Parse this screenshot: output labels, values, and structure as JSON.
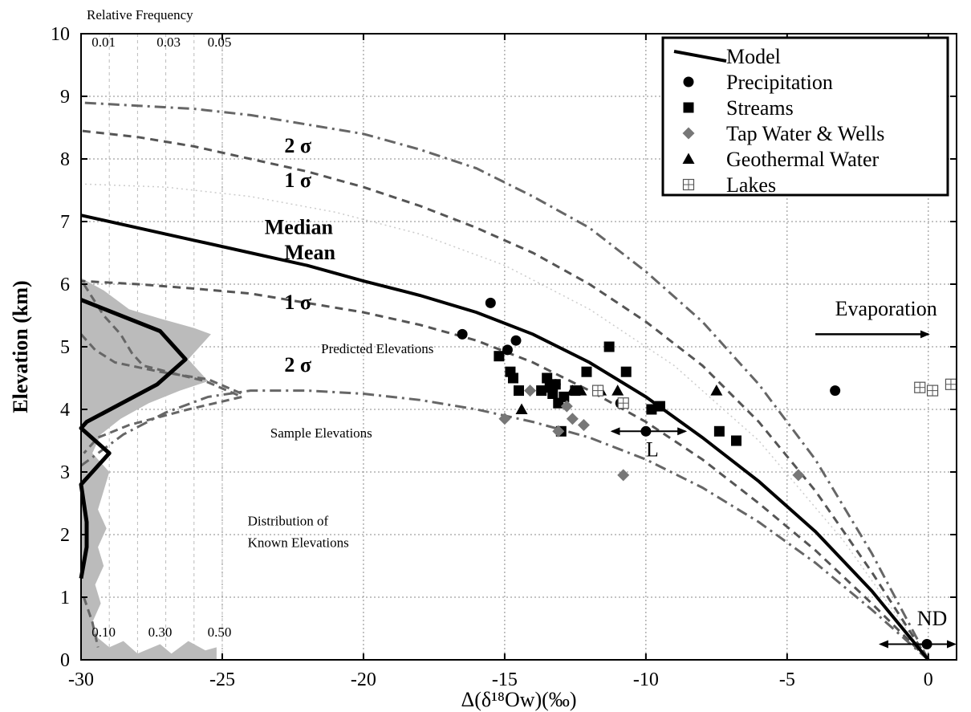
{
  "chart_data": {
    "type": "scatter",
    "xlabel": "Δ(δ¹⁸Ow)(‰)",
    "ylabel": "Elevation (km)",
    "xlim": [
      -30,
      1
    ],
    "ylim": [
      0,
      10
    ],
    "x_ticks": [
      -30,
      -25,
      -20,
      -15,
      -10,
      -5,
      0
    ],
    "y_ticks": [
      0,
      1,
      2,
      3,
      4,
      5,
      6,
      7,
      8,
      9,
      10
    ],
    "grid": true,
    "legend_position": "top-right",
    "legend": [
      {
        "label": "Model",
        "marker": "line"
      },
      {
        "label": "Precipitation",
        "marker": "circle"
      },
      {
        "label": "Streams",
        "marker": "square"
      },
      {
        "label": "Tap Water & Wells",
        "marker": "diamond"
      },
      {
        "label": "Geothermal Water",
        "marker": "triangle"
      },
      {
        "label": "Lakes",
        "marker": "boxed-plus"
      }
    ],
    "colors": {
      "black": "#000000",
      "gray": "#777777",
      "lightgray": "#bbbbbb",
      "dashed": "#555555"
    },
    "freq_axis": {
      "title": "Relative Frequency",
      "top_ticks": [
        {
          "label": "0.01",
          "x": -29.2
        },
        {
          "label": "0.03",
          "x": -26.9
        },
        {
          "label": "0.05",
          "x": -25.1
        }
      ],
      "bottom_ticks": [
        {
          "label": "0.10",
          "x": -29.2
        },
        {
          "label": "0.30",
          "x": -27.2
        },
        {
          "label": "0.50",
          "x": -25.1
        }
      ],
      "gridlines_x": [
        -29.0,
        -28.0,
        -27.0,
        -26.0,
        -25.0
      ]
    },
    "curves": {
      "model": [
        [
          0,
          0
        ],
        [
          -2,
          1.1
        ],
        [
          -4,
          2.05
        ],
        [
          -6,
          2.85
        ],
        [
          -8,
          3.55
        ],
        [
          -10,
          4.2
        ],
        [
          -12,
          4.75
        ],
        [
          -14,
          5.2
        ],
        [
          -16,
          5.55
        ],
        [
          -18,
          5.82
        ],
        [
          -20,
          6.05
        ],
        [
          -22,
          6.3
        ],
        [
          -24,
          6.5
        ],
        [
          -26,
          6.7
        ],
        [
          -28,
          6.9
        ],
        [
          -30,
          7.1
        ]
      ],
      "sigma1_upper": [
        [
          0,
          0
        ],
        [
          -2,
          1.4
        ],
        [
          -4,
          2.7
        ],
        [
          -6,
          3.8
        ],
        [
          -8,
          4.7
        ],
        [
          -10,
          5.4
        ],
        [
          -12,
          6.0
        ],
        [
          -14,
          6.5
        ],
        [
          -16,
          6.9
        ],
        [
          -18,
          7.25
        ],
        [
          -20,
          7.55
        ],
        [
          -22,
          7.8
        ],
        [
          -24,
          8.0
        ],
        [
          -26,
          8.2
        ],
        [
          -28,
          8.35
        ],
        [
          -30,
          8.45
        ]
      ],
      "sigma2_upper": [
        [
          0,
          0
        ],
        [
          -2,
          1.7
        ],
        [
          -4,
          3.2
        ],
        [
          -6,
          4.4
        ],
        [
          -8,
          5.4
        ],
        [
          -10,
          6.2
        ],
        [
          -12,
          6.9
        ],
        [
          -14,
          7.4
        ],
        [
          -16,
          7.85
        ],
        [
          -18,
          8.15
        ],
        [
          -20,
          8.4
        ],
        [
          -22,
          8.55
        ],
        [
          -24,
          8.7
        ],
        [
          -26,
          8.8
        ],
        [
          -28,
          8.85
        ],
        [
          -30,
          8.9
        ]
      ],
      "sigma1_lower": [
        [
          0,
          0
        ],
        [
          -2,
          0.9
        ],
        [
          -4,
          1.75
        ],
        [
          -6,
          2.5
        ],
        [
          -8,
          3.2
        ],
        [
          -10,
          3.8
        ],
        [
          -12,
          4.3
        ],
        [
          -14,
          4.75
        ],
        [
          -16,
          5.1
        ],
        [
          -18,
          5.35
        ],
        [
          -20,
          5.55
        ],
        [
          -22,
          5.7
        ],
        [
          -24,
          5.85
        ],
        [
          -26,
          5.93
        ],
        [
          -28,
          6.0
        ],
        [
          -30,
          6.05
        ]
      ],
      "sigma2_lower": [
        [
          0,
          0
        ],
        [
          -2,
          0.8
        ],
        [
          -4,
          1.55
        ],
        [
          -6,
          2.2
        ],
        [
          -8,
          2.75
        ],
        [
          -10,
          3.2
        ],
        [
          -12,
          3.55
        ],
        [
          -14,
          3.8
        ],
        [
          -16,
          4.0
        ],
        [
          -18,
          4.15
        ],
        [
          -20,
          4.25
        ],
        [
          -22,
          4.3
        ],
        [
          -24,
          4.3
        ],
        [
          -25.5,
          4.2
        ],
        [
          -27,
          3.95
        ],
        [
          -28.5,
          3.6
        ],
        [
          -30,
          3.1
        ]
      ],
      "median_faint": [
        [
          0,
          0
        ],
        [
          -3,
          1.9
        ],
        [
          -6,
          3.5
        ],
        [
          -9,
          4.7
        ],
        [
          -12,
          5.6
        ],
        [
          -15,
          6.3
        ],
        [
          -18,
          6.8
        ],
        [
          -21,
          7.15
        ],
        [
          -24,
          7.4
        ],
        [
          -27,
          7.55
        ],
        [
          -30,
          7.6
        ]
      ],
      "sample_dist": [
        [
          -30,
          5.75
        ],
        [
          -27.2,
          5.25
        ],
        [
          -26.3,
          4.8
        ],
        [
          -27.3,
          4.4
        ],
        [
          -29.8,
          3.8
        ],
        [
          -30,
          3.7
        ],
        [
          -29.5,
          3.5
        ],
        [
          -29,
          3.3
        ],
        [
          -29.6,
          3.0
        ],
        [
          -30,
          2.8
        ],
        [
          -29.8,
          2.2
        ],
        [
          -29.8,
          1.8
        ],
        [
          -30,
          1.3
        ]
      ],
      "predicted_dist": [
        [
          -29.9,
          6.0
        ],
        [
          -29.2,
          5.5
        ],
        [
          -28.6,
          5.2
        ],
        [
          -28.2,
          4.9
        ],
        [
          -27.8,
          4.7
        ],
        [
          -26.5,
          4.55
        ],
        [
          -25.6,
          4.45
        ],
        [
          -24.3,
          4.2
        ],
        [
          -26.2,
          4.0
        ],
        [
          -28.3,
          3.75
        ],
        [
          -29.4,
          3.55
        ],
        [
          -29.9,
          3.3
        ]
      ],
      "predicted_dist_b": [
        [
          -30,
          5.2
        ],
        [
          -29.5,
          4.95
        ],
        [
          -28.8,
          4.75
        ],
        [
          -27.2,
          4.6
        ],
        [
          -25.5,
          4.48
        ],
        [
          -24.3,
          4.25
        ]
      ],
      "predicted_dist_c": [
        [
          -29.9,
          1.0
        ],
        [
          -29.6,
          0.6
        ],
        [
          -29.4,
          0.2
        ]
      ],
      "known_dist": [
        [
          -30,
          6.1
        ],
        [
          -29.2,
          5.9
        ],
        [
          -28.3,
          5.6
        ],
        [
          -27.2,
          5.45
        ],
        [
          -26,
          5.3
        ],
        [
          -25.4,
          5.2
        ],
        [
          -25.9,
          4.95
        ],
        [
          -26.2,
          4.8
        ],
        [
          -25.8,
          4.6
        ],
        [
          -25.5,
          4.45
        ],
        [
          -26.5,
          4.3
        ],
        [
          -27.6,
          4.1
        ],
        [
          -28.6,
          3.85
        ],
        [
          -29.3,
          3.6
        ],
        [
          -29.6,
          3.3
        ],
        [
          -29.0,
          3.0
        ],
        [
          -29.2,
          2.7
        ],
        [
          -29.4,
          2.4
        ],
        [
          -29.1,
          2.1
        ],
        [
          -29.4,
          1.8
        ],
        [
          -29.2,
          1.5
        ],
        [
          -29.5,
          1.2
        ],
        [
          -29.3,
          0.9
        ],
        [
          -29.6,
          0.6
        ],
        [
          -29.4,
          0.35
        ],
        [
          -29,
          0.2
        ],
        [
          -28.5,
          0.3
        ],
        [
          -28,
          0.1
        ],
        [
          -27.2,
          0.25
        ],
        [
          -26.8,
          0.1
        ],
        [
          -26.2,
          0.3
        ],
        [
          -25.6,
          0.15
        ],
        [
          -25.2,
          0.2
        ],
        [
          -25.2,
          0
        ],
        [
          -30,
          0
        ]
      ]
    },
    "series": [
      {
        "name": "Precipitation",
        "marker": "circle",
        "points": [
          [
            -16.5,
            5.2
          ],
          [
            -15.5,
            5.7
          ],
          [
            -14.9,
            4.95
          ],
          [
            -14.6,
            5.1
          ],
          [
            -13.2,
            4.4
          ],
          [
            -10.9,
            4.1
          ],
          [
            -10.0,
            3.65
          ],
          [
            -3.3,
            4.3
          ],
          [
            -0.05,
            0.25
          ]
        ]
      },
      {
        "name": "Streams",
        "marker": "square",
        "points": [
          [
            -15.2,
            4.85
          ],
          [
            -14.8,
            4.6
          ],
          [
            -14.7,
            4.5
          ],
          [
            -14.5,
            4.3
          ],
          [
            -13.7,
            4.3
          ],
          [
            -13.5,
            4.5
          ],
          [
            -13.4,
            4.35
          ],
          [
            -13.3,
            4.25
          ],
          [
            -13.2,
            4.4
          ],
          [
            -13.1,
            4.1
          ],
          [
            -12.9,
            4.2
          ],
          [
            -13.0,
            3.65
          ],
          [
            -12.5,
            4.3
          ],
          [
            -12.1,
            4.6
          ],
          [
            -11.3,
            5.0
          ],
          [
            -10.7,
            4.6
          ],
          [
            -9.8,
            4.0
          ],
          [
            -9.5,
            4.05
          ],
          [
            -7.4,
            3.65
          ],
          [
            -6.8,
            3.5
          ]
        ]
      },
      {
        "name": "Tap Water & Wells",
        "marker": "diamond",
        "points": [
          [
            -15.0,
            3.85
          ],
          [
            -14.1,
            4.3
          ],
          [
            -13.1,
            3.65
          ],
          [
            -12.8,
            4.05
          ],
          [
            -12.6,
            3.85
          ],
          [
            -12.2,
            3.75
          ],
          [
            -10.8,
            2.95
          ],
          [
            -4.6,
            2.95
          ]
        ]
      },
      {
        "name": "Geothermal Water",
        "marker": "triangle",
        "points": [
          [
            -14.4,
            4.0
          ],
          [
            -12.6,
            4.3
          ],
          [
            -12.3,
            4.3
          ],
          [
            -11.6,
            4.3
          ],
          [
            -11.0,
            4.3
          ],
          [
            -7.5,
            4.3
          ]
        ]
      },
      {
        "name": "Lakes",
        "marker": "boxed-plus",
        "points": [
          [
            -11.7,
            4.3
          ],
          [
            -10.8,
            4.1
          ],
          [
            -0.3,
            4.35
          ],
          [
            0.15,
            4.3
          ],
          [
            0.8,
            4.4
          ]
        ]
      }
    ],
    "annotations": [
      {
        "text": "2 σ",
        "x": -22.8,
        "y": 8.1,
        "bold": true,
        "size": "large"
      },
      {
        "text": "1 σ",
        "x": -22.8,
        "y": 7.55,
        "bold": true,
        "size": "large"
      },
      {
        "text": "Median",
        "x": -23.5,
        "y": 6.8,
        "bold": true,
        "size": "large"
      },
      {
        "text": "Mean",
        "x": -22.8,
        "y": 6.4,
        "bold": true,
        "size": "large"
      },
      {
        "text": "1 σ",
        "x": -22.8,
        "y": 5.6,
        "bold": true,
        "size": "large"
      },
      {
        "text": "2 σ",
        "x": -22.8,
        "y": 4.6,
        "bold": true,
        "size": "large"
      },
      {
        "text": "Predicted Elevations",
        "x": -21.5,
        "y": 4.9,
        "bold": false,
        "size": "small"
      },
      {
        "text": "Sample Elevations",
        "x": -23.3,
        "y": 3.55,
        "bold": false,
        "size": "small"
      },
      {
        "text": "Distribution of",
        "x": -24.1,
        "y": 2.15,
        "bold": false,
        "size": "small"
      },
      {
        "text": "Known Elevations",
        "x": -24.1,
        "y": 1.8,
        "bold": false,
        "size": "small"
      },
      {
        "text": "Evaporation",
        "x": -3.3,
        "y": 5.5,
        "bold": false,
        "size": "large"
      },
      {
        "text": "L",
        "x": -10.0,
        "y": 3.25,
        "bold": false,
        "size": "large"
      },
      {
        "text": "ND",
        "x": -0.4,
        "y": 0.55,
        "bold": false,
        "size": "large"
      }
    ],
    "arrows": {
      "evaporation": {
        "x1": -4.0,
        "x2": 0.0,
        "y": 5.2
      },
      "L": {
        "x1": -11.2,
        "x2": -8.6,
        "y": 3.65
      },
      "ND": {
        "x1": -1.7,
        "x2": 1.0,
        "y": 0.25
      }
    }
  }
}
